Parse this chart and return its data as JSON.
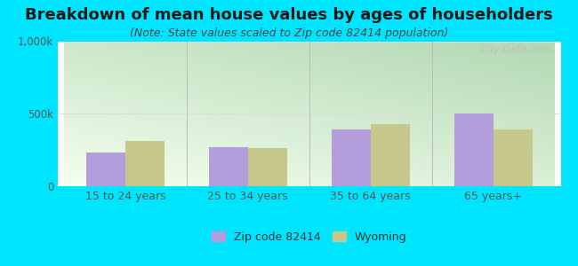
{
  "title": "Breakdown of mean house values by ages of householders",
  "subtitle": "(Note: State values scaled to Zip code 82414 population)",
  "categories": [
    "15 to 24 years",
    "25 to 34 years",
    "35 to 64 years",
    "65 years+"
  ],
  "zip_values": [
    230000,
    270000,
    390000,
    500000
  ],
  "wy_values": [
    310000,
    260000,
    430000,
    390000
  ],
  "ylim": [
    0,
    1000000
  ],
  "ytick_labels": [
    "0",
    "500k",
    "1,000k"
  ],
  "zip_color": "#b39ddb",
  "wy_color": "#c5c88a",
  "background_outer": "#00e5ff",
  "bg_top_left": "#b2d8b2",
  "bg_bottom_right": "#f5fff0",
  "legend_zip": "Zip code 82414",
  "legend_wy": "Wyoming",
  "title_fontsize": 13,
  "subtitle_fontsize": 9,
  "bar_width": 0.32,
  "tick_color": "#555555",
  "grid_color": "#dddddd",
  "separator_color": "#bbbbbb"
}
